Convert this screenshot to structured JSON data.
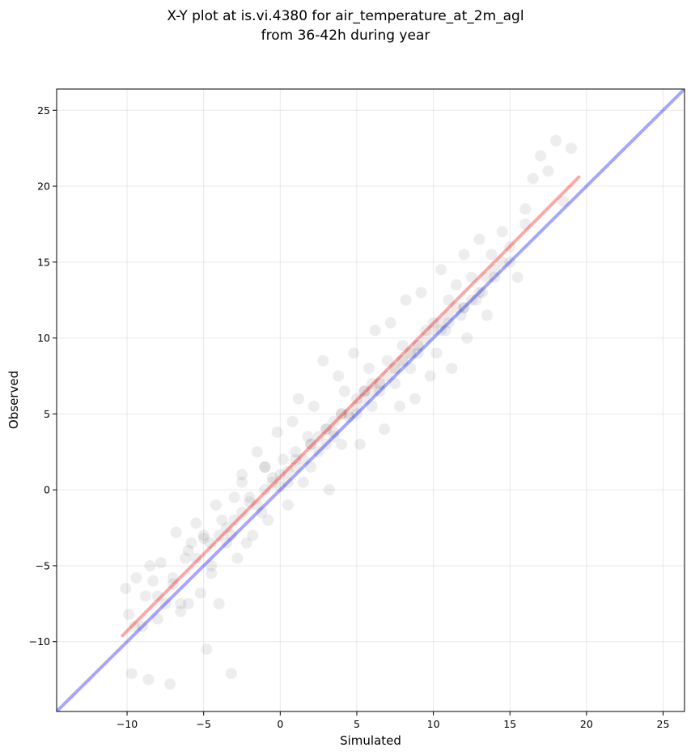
{
  "chart_data": {
    "type": "scatter",
    "title_line1": "X-Y plot at is.vi.4380 for air_temperature_at_2m_agl",
    "title_line2": "from 36-42h during year",
    "xlabel": "Simulated",
    "ylabel": "Observed",
    "xlim": [
      -14.6,
      26.4
    ],
    "ylim": [
      -14.6,
      26.4
    ],
    "xticks": [
      -10,
      -5,
      0,
      5,
      10,
      15,
      20,
      25
    ],
    "yticks": [
      -10,
      -5,
      0,
      5,
      10,
      15,
      20,
      25
    ],
    "xtick_labels": [
      "−10",
      "−5",
      "0",
      "5",
      "10",
      "15",
      "20",
      "25"
    ],
    "ytick_labels": [
      "−10",
      "−5",
      "0",
      "5",
      "10",
      "15",
      "20",
      "25"
    ],
    "grid": true,
    "series": [
      {
        "kind": "points",
        "color": "#000000",
        "opacity": 0.07,
        "x": [
          -10.1,
          -9.9,
          -9.7,
          -9.4,
          -9.0,
          -8.8,
          -8.6,
          -8.3,
          -8.0,
          -7.8,
          -7.5,
          -7.2,
          -7.0,
          -6.8,
          -6.5,
          -6.2,
          -6.0,
          -5.8,
          -5.5,
          -5.2,
          -5.0,
          -4.8,
          -4.5,
          -4.2,
          -4.0,
          -3.8,
          -3.5,
          -3.2,
          -3.0,
          -2.8,
          -2.5,
          -2.2,
          -2.0,
          -1.8,
          -1.5,
          -1.2,
          -1.0,
          -0.8,
          -0.5,
          -0.2,
          0.0,
          0.2,
          0.5,
          0.8,
          1.0,
          1.2,
          1.5,
          1.8,
          2.0,
          2.2,
          2.5,
          2.8,
          3.0,
          3.2,
          3.5,
          3.8,
          4.0,
          4.2,
          4.5,
          4.8,
          5.0,
          5.2,
          5.5,
          5.8,
          6.0,
          6.2,
          6.5,
          6.8,
          7.0,
          7.2,
          7.5,
          7.8,
          8.0,
          8.2,
          8.5,
          8.8,
          9.0,
          9.2,
          9.5,
          9.8,
          10.0,
          10.2,
          10.5,
          10.8,
          11.0,
          11.2,
          11.5,
          11.8,
          12.0,
          12.2,
          12.5,
          12.8,
          13.0,
          13.2,
          13.5,
          13.8,
          14.0,
          14.5,
          15.0,
          15.5,
          16.0,
          16.5,
          17.0,
          17.5,
          18.0,
          18.5,
          19.0,
          -8.5,
          -7.0,
          -6.0,
          -5.0,
          -4.0,
          -3.0,
          -2.0,
          -1.0,
          0.0,
          1.0,
          2.0,
          3.0,
          4.0,
          5.0,
          6.0,
          7.0,
          8.0,
          9.0,
          10.0,
          11.0,
          12.0,
          13.0,
          14.0,
          15.0,
          16.0,
          -9.5,
          -8.0,
          -6.5,
          -5.5,
          -4.5,
          -3.5,
          -2.5,
          -1.5,
          -0.5,
          0.5,
          1.5,
          2.5,
          3.5,
          4.5,
          5.5,
          6.5,
          7.5,
          8.5,
          9.5,
          10.5,
          11.5,
          12.5,
          13.5,
          14.5,
          -3.2,
          -4.6,
          -1.0,
          3.0,
          6.5,
          9.0,
          12.0,
          2.0,
          5.0,
          7.5,
          10.5,
          -2.5,
          1.0,
          4.0,
          6.0,
          8.5,
          0.5,
          3.5,
          5.5,
          8.0,
          11.0
        ],
        "y": [
          -6.5,
          -8.2,
          -12.1,
          -5.8,
          -9.0,
          -7.0,
          -12.5,
          -6.0,
          -8.5,
          -4.8,
          -7.5,
          -12.8,
          -6.2,
          -2.8,
          -8.0,
          -4.5,
          -7.5,
          -3.5,
          -2.2,
          -6.8,
          -3.0,
          -10.5,
          -5.0,
          -1.0,
          -7.5,
          -2.0,
          -3.5,
          -12.1,
          -0.5,
          -4.5,
          1.0,
          -3.5,
          -0.8,
          -3.0,
          2.5,
          -1.5,
          1.5,
          -2.0,
          0.8,
          3.8,
          0.2,
          2.0,
          -1.0,
          4.5,
          1.5,
          6.0,
          0.5,
          3.5,
          1.5,
          5.5,
          2.5,
          8.5,
          3.0,
          0.0,
          4.5,
          7.5,
          3.0,
          6.5,
          4.8,
          9.0,
          5.0,
          3.0,
          6.5,
          8.0,
          5.5,
          10.5,
          7.0,
          4.0,
          8.5,
          11.0,
          7.0,
          5.5,
          9.5,
          12.5,
          8.0,
          6.0,
          9.0,
          13.0,
          10.5,
          7.5,
          11.0,
          9.0,
          14.5,
          10.5,
          12.5,
          8.0,
          13.5,
          11.5,
          15.5,
          10.0,
          14.0,
          12.5,
          16.5,
          13.0,
          11.5,
          15.5,
          14.0,
          17.0,
          15.0,
          14.0,
          18.5,
          20.5,
          22.0,
          21.0,
          23.0,
          19.0,
          22.5,
          -5.0,
          -5.8,
          -4.0,
          -3.2,
          -3.0,
          -2.0,
          -0.5,
          0.0,
          1.0,
          2.0,
          3.0,
          4.0,
          5.0,
          6.0,
          7.0,
          7.5,
          8.5,
          9.5,
          10.5,
          11.5,
          12.0,
          13.0,
          14.5,
          16.0,
          17.5,
          -9.0,
          -7.0,
          -7.5,
          -4.5,
          -5.5,
          -2.5,
          -1.5,
          -1.0,
          0.5,
          1.2,
          2.0,
          3.5,
          3.8,
          5.0,
          6.5,
          7.0,
          8.0,
          9.0,
          10.0,
          10.5,
          12.0,
          12.5,
          14.0,
          15.0,
          -3.0,
          -3.5,
          1.5,
          4.0,
          6.5,
          9.5,
          12.0,
          3.0,
          5.5,
          8.0,
          11.0,
          0.5,
          2.5,
          5.0,
          6.5,
          9.0,
          0.5,
          3.5,
          6.0,
          8.5,
          11.0
        ]
      },
      {
        "kind": "line",
        "name": "",
        "color": "#ff0000",
        "opacity": 0.35,
        "x": [
          -10.3,
          19.5
        ],
        "y": [
          -9.6,
          20.6
        ]
      },
      {
        "kind": "line",
        "name": "",
        "color": "#0000ff",
        "opacity": 0.35,
        "x": [
          -14.6,
          26.4
        ],
        "y": [
          -14.6,
          26.4
        ]
      }
    ]
  }
}
